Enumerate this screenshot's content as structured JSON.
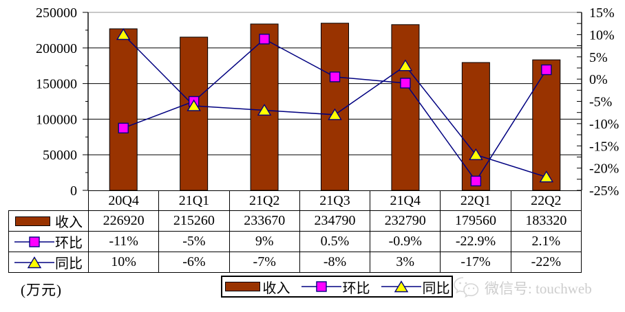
{
  "unit_label": "(万元)",
  "watermark": {
    "text": "微信号: touchweb",
    "icon": "wechat-icon"
  },
  "chart_data": {
    "type": "bar+line combo",
    "title": "",
    "categories": [
      "20Q4",
      "21Q1",
      "21Q2",
      "21Q3",
      "21Q4",
      "22Q1",
      "22Q2"
    ],
    "series": [
      {
        "key": "revenue",
        "name": "收入",
        "type": "bar",
        "axis": "left",
        "color": "#993300",
        "border_color": "#000000",
        "values": [
          226920,
          215260,
          233670,
          234790,
          232790,
          179560,
          183320
        ],
        "table_cells": [
          "226920",
          "215260",
          "233670",
          "234790",
          "232790",
          "179560",
          "183320"
        ]
      },
      {
        "key": "qoq",
        "name": "环比",
        "type": "line",
        "axis": "right",
        "line_color": "#000080",
        "marker": "square",
        "marker_color": "#FF00FF",
        "values": [
          -11,
          -5,
          9,
          0.5,
          -0.9,
          -22.9,
          2.1
        ],
        "table_cells": [
          "-11%",
          "-5%",
          "9%",
          "0.5%",
          "-0.9%",
          "-22.9%",
          "2.1%"
        ]
      },
      {
        "key": "yoy",
        "name": "同比",
        "type": "line",
        "axis": "right",
        "line_color": "#000080",
        "marker": "triangle",
        "marker_color": "#FFFF00",
        "values": [
          10,
          -6,
          -7,
          -8,
          3,
          -17,
          -22
        ],
        "table_cells": [
          "10%",
          "-6%",
          "-7%",
          "-8%",
          "3%",
          "-17%",
          "-22%"
        ]
      }
    ],
    "left_axis": {
      "min": 0,
      "max": 250000,
      "step": 50000,
      "tick_labels": [
        "0",
        "50000",
        "100000",
        "150000",
        "200000",
        "250000"
      ]
    },
    "right_axis": {
      "min": -25,
      "max": 15,
      "step": 5,
      "minor_step": 2.5,
      "tick_labels": [
        "15%",
        "10%",
        "5%",
        "0%",
        "-5%",
        "-10%",
        "-15%",
        "-20%",
        "-25%"
      ]
    },
    "grid": true,
    "legend_position": "bottom",
    "colors": {
      "grid_line": "#000000",
      "plot_top_border": "#a8a8a8",
      "axis_line": "#000000"
    }
  },
  "legend": {
    "items": [
      {
        "label": "收入",
        "marker": "bar"
      },
      {
        "label": "环比",
        "marker": "square"
      },
      {
        "label": "同比",
        "marker": "triangle"
      }
    ]
  }
}
